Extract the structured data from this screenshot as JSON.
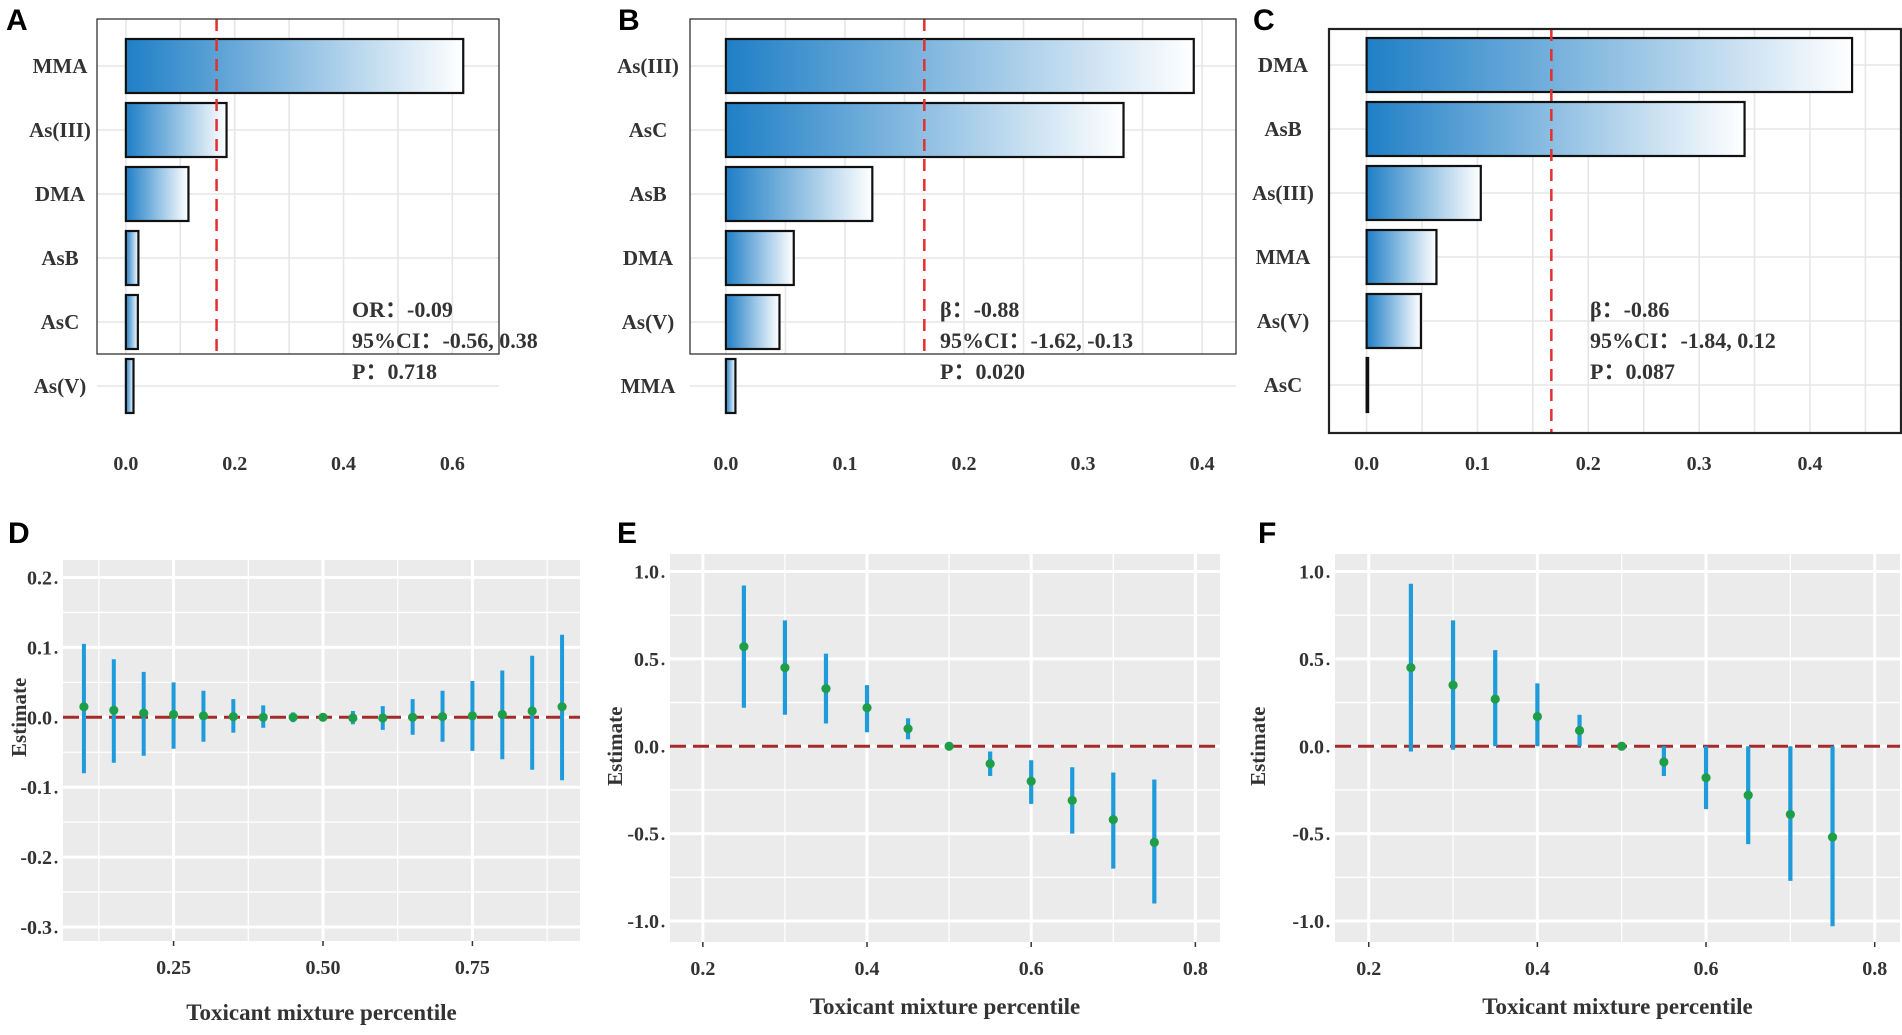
{
  "colors": {
    "bar_dark": "#1F7FC6",
    "bar_light": "#FFFFFF",
    "bar_border": "#111111",
    "threshold": "#E03030",
    "errorbar": "#1E9BDB",
    "point": "#1F9E4A",
    "zero_line": "#A52A2A",
    "grid_panel_bg": "#EBEBEB",
    "grid_line": "#E6E6E6"
  },
  "chart_data": [
    {
      "id": "A",
      "panel_label": "A",
      "type": "bar",
      "orientation": "horizontal",
      "categories": [
        "MMA",
        "As(III)",
        "DMA",
        "AsB",
        "AsC",
        "As(V)"
      ],
      "values": [
        0.62,
        0.185,
        0.115,
        0.023,
        0.022,
        0.014
      ],
      "xlim": [
        -0.02,
        0.66
      ],
      "xticks": [
        0,
        0.2,
        0.4,
        0.6
      ],
      "xtick_labels": [
        "0.0",
        "0.2",
        "0.4",
        "0.6"
      ],
      "threshold": 0.16667,
      "stats": [
        "OR：-0.09",
        "95%CI：-0.56, 0.38",
        "P：0.718"
      ]
    },
    {
      "id": "B",
      "panel_label": "B",
      "type": "bar",
      "orientation": "horizontal",
      "categories": [
        "As(III)",
        "AsC",
        "AsB",
        "DMA",
        "As(V)",
        "MMA"
      ],
      "values": [
        0.393,
        0.334,
        0.123,
        0.057,
        0.045,
        0.008
      ],
      "xlim": [
        -0.01,
        0.41
      ],
      "xticks": [
        0,
        0.1,
        0.2,
        0.3,
        0.4
      ],
      "xtick_labels": [
        "0.0",
        "0.1",
        "0.2",
        "0.3",
        "0.4"
      ],
      "threshold": 0.16667,
      "stats": [
        "β：-0.88",
        "95%CI：-1.62, -0.13",
        "P：0.020"
      ]
    },
    {
      "id": "C",
      "panel_label": "C",
      "type": "bar",
      "orientation": "horizontal",
      "categories": [
        "DMA",
        "AsB",
        "As(III)",
        "MMA",
        "As(V)",
        "AsC"
      ],
      "values": [
        0.438,
        0.341,
        0.103,
        0.063,
        0.049,
        0.001
      ],
      "xlim": [
        -0.015,
        0.465
      ],
      "xticks": [
        0,
        0.1,
        0.2,
        0.3,
        0.4
      ],
      "xtick_labels": [
        "0.0",
        "0.1",
        "0.2",
        "0.3",
        "0.4"
      ],
      "threshold": 0.16667,
      "stats": [
        "β：-0.86",
        "95%CI：-1.84, 0.12",
        "P：0.087"
      ]
    },
    {
      "id": "D",
      "panel_label": "D",
      "type": "scatter",
      "subtype": "pointrange",
      "x": [
        0.1,
        0.15,
        0.2,
        0.25,
        0.3,
        0.35,
        0.4,
        0.45,
        0.5,
        0.55,
        0.6,
        0.65,
        0.7,
        0.75,
        0.8,
        0.85,
        0.9
      ],
      "estimate": [
        0.015,
        0.01,
        0.006,
        0.004,
        0.002,
        0.001,
        0.0,
        0.0,
        0.0,
        -0.001,
        -0.001,
        0.0,
        0.001,
        0.002,
        0.004,
        0.009,
        0.015
      ],
      "lower": [
        -0.08,
        -0.065,
        -0.055,
        -0.045,
        -0.035,
        -0.022,
        -0.015,
        -0.007,
        0.0,
        -0.01,
        -0.018,
        -0.025,
        -0.035,
        -0.048,
        -0.06,
        -0.075,
        -0.09
      ],
      "upper": [
        0.105,
        0.083,
        0.065,
        0.05,
        0.038,
        0.026,
        0.017,
        0.007,
        0.0,
        0.009,
        0.016,
        0.026,
        0.038,
        0.052,
        0.067,
        0.088,
        0.118
      ],
      "xlim": [
        0.065,
        0.93
      ],
      "ylim": [
        -0.32,
        0.225
      ],
      "xticks": [
        0.25,
        0.5,
        0.75
      ],
      "xtick_labels": [
        "0.25",
        "0.50",
        "0.75"
      ],
      "yticks": [
        0.2,
        0.1,
        0.0,
        -0.1,
        -0.2,
        -0.3
      ],
      "ytick_labels": [
        "0.2",
        "0.1",
        "0.0",
        "-0.1",
        "-0.2",
        "-0.3"
      ],
      "xlabel": "Toxicant mixture percentile",
      "ylabel": "Estimate"
    },
    {
      "id": "E",
      "panel_label": "E",
      "type": "scatter",
      "subtype": "pointrange",
      "x": [
        0.25,
        0.3,
        0.35,
        0.4,
        0.45,
        0.5,
        0.55,
        0.6,
        0.65,
        0.7,
        0.75
      ],
      "estimate": [
        0.57,
        0.45,
        0.33,
        0.22,
        0.1,
        0.0,
        -0.1,
        -0.2,
        -0.31,
        -0.42,
        -0.55
      ],
      "lower": [
        0.22,
        0.18,
        0.13,
        0.08,
        0.04,
        0.0,
        -0.17,
        -0.33,
        -0.5,
        -0.7,
        -0.9
      ],
      "upper": [
        0.92,
        0.72,
        0.53,
        0.35,
        0.16,
        0.0,
        -0.03,
        -0.08,
        -0.12,
        -0.15,
        -0.19
      ],
      "xlim": [
        0.16,
        0.83
      ],
      "ylim": [
        -1.12,
        1.1
      ],
      "xticks": [
        0.2,
        0.4,
        0.6,
        0.8
      ],
      "xtick_labels": [
        "0.2",
        "0.4",
        "0.6",
        "0.8"
      ],
      "yticks": [
        1.0,
        0.5,
        0.0,
        -0.5,
        -1.0
      ],
      "ytick_labels": [
        "1.0",
        "0.5",
        "0.0",
        "-0.5",
        "-1.0"
      ],
      "xlabel": "Toxicant mixture percentile",
      "ylabel": "Estimate"
    },
    {
      "id": "F",
      "panel_label": "F",
      "type": "scatter",
      "subtype": "pointrange",
      "x": [
        0.25,
        0.3,
        0.35,
        0.4,
        0.45,
        0.5,
        0.55,
        0.6,
        0.65,
        0.7,
        0.75
      ],
      "estimate": [
        0.45,
        0.35,
        0.27,
        0.17,
        0.09,
        0.0,
        -0.09,
        -0.18,
        -0.28,
        -0.39,
        -0.52
      ],
      "lower": [
        -0.03,
        -0.02,
        0.0,
        0.0,
        0.0,
        0.0,
        -0.17,
        -0.36,
        -0.56,
        -0.77,
        -1.03
      ],
      "upper": [
        0.93,
        0.72,
        0.55,
        0.36,
        0.18,
        0.0,
        0.0,
        0.0,
        0.0,
        0.0,
        0.0
      ],
      "xlim": [
        0.16,
        0.83
      ],
      "ylim": [
        -1.12,
        1.1
      ],
      "xticks": [
        0.2,
        0.4,
        0.6,
        0.8
      ],
      "xtick_labels": [
        "0.2",
        "0.4",
        "0.6",
        "0.8"
      ],
      "yticks": [
        1.0,
        0.5,
        0.0,
        -0.5,
        -1.0
      ],
      "ytick_labels": [
        "1.0",
        "0.5",
        "0.0",
        "-0.5",
        "-1.0"
      ],
      "xlabel": "Toxicant mixture percentile",
      "ylabel": "Estimate"
    }
  ]
}
